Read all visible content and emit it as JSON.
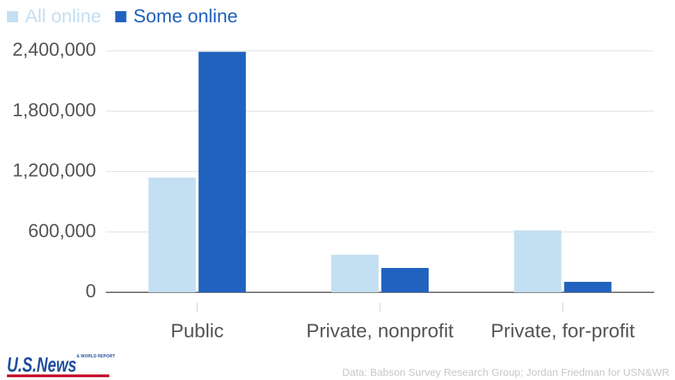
{
  "chart_data": {
    "type": "bar",
    "categories": [
      "Public",
      "Private, nonprofit",
      "Private, for-profit"
    ],
    "series": [
      {
        "name": "All online",
        "color": "#c3dff2",
        "values": [
          1140000,
          373000,
          615000
        ]
      },
      {
        "name": "Some online",
        "color": "#2162be",
        "values": [
          2390000,
          242000,
          104000
        ]
      }
    ],
    "ylim": [
      0,
      2400000
    ],
    "yticks": [
      {
        "value": 0,
        "label": "0"
      },
      {
        "value": 600000,
        "label": "600,000"
      },
      {
        "value": 1200000,
        "label": "1,200,000"
      },
      {
        "value": 1800000,
        "label": "1,800,000"
      },
      {
        "value": 2400000,
        "label": "2,400,000"
      }
    ],
    "grid": true,
    "legend": "top-left",
    "source": "Data: Babson Survey Research Group; Jordan Friedman for USN&WR",
    "logo": "U.S.News",
    "logo_tagline": "& WORLD REPORT"
  }
}
